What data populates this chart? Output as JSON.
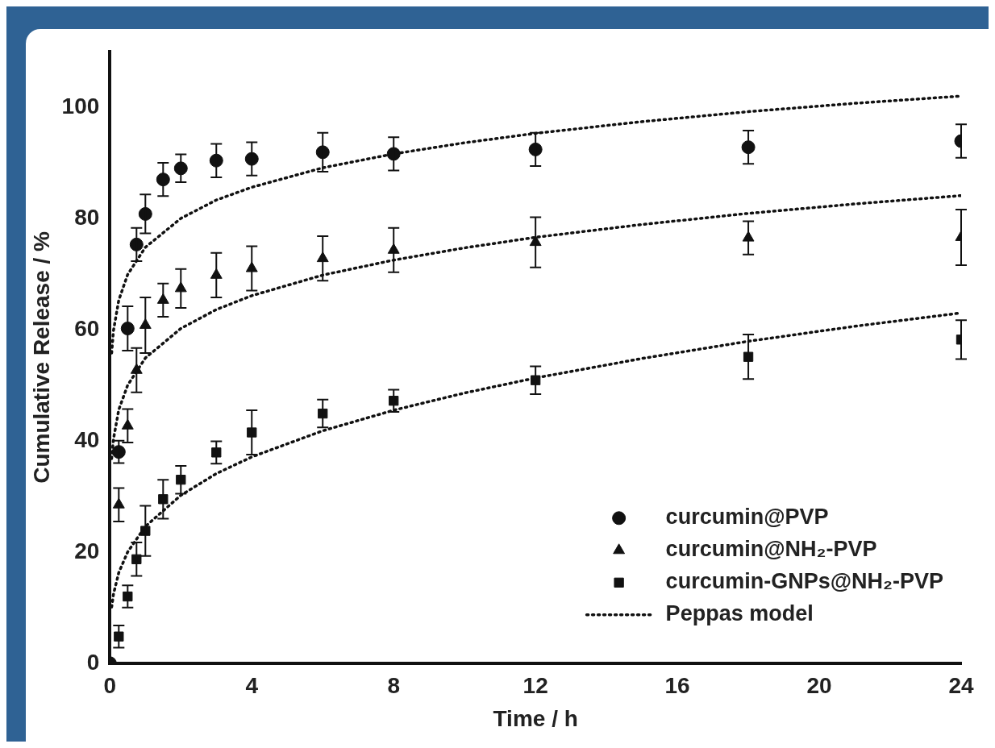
{
  "chart_data": {
    "type": "scatter",
    "xlabel": "Time / h",
    "ylabel": "Cumulative Release / %",
    "xlim": [
      0,
      24
    ],
    "xticks": [
      0,
      4,
      8,
      12,
      16,
      20,
      24
    ],
    "ylim": [
      0,
      110
    ],
    "yticks": [
      0,
      20,
      40,
      60,
      80,
      100
    ],
    "grid": false,
    "legend": "bottom right",
    "series": [
      {
        "name": "curcumin@PVP",
        "marker": "circle",
        "color": "#111111",
        "x": [
          0,
          0.25,
          0.5,
          0.75,
          1,
          1.5,
          2,
          3,
          4,
          6,
          8,
          12,
          18,
          24
        ],
        "values": [
          0,
          38,
          60.2,
          75.3,
          80.8,
          87,
          89,
          90.4,
          90.7,
          91.9,
          91.6,
          92.4,
          92.8,
          93.9
        ],
        "errors": [
          null,
          2,
          4,
          3,
          3.5,
          3,
          2.5,
          3,
          3,
          3.5,
          3,
          3,
          3,
          3
        ]
      },
      {
        "name": "curcumin@NH₂-PVP",
        "marker": "triangle",
        "color": "#111111",
        "x": [
          0.25,
          0.5,
          0.75,
          1,
          1.5,
          2,
          3,
          4,
          6,
          8,
          12,
          18,
          24
        ],
        "values": [
          28.5,
          42.7,
          52.7,
          60.8,
          65.3,
          67.4,
          69.8,
          71,
          72.8,
          74.3,
          75.7,
          76.5,
          76.6
        ],
        "errors": [
          3,
          3,
          4,
          5,
          3,
          3.5,
          4,
          4,
          4,
          4,
          4.5,
          3,
          5
        ]
      },
      {
        "name": "curcumin-GNPs@NH₂-PVP",
        "marker": "square",
        "color": "#111111",
        "x": [
          0.25,
          0.5,
          0.75,
          1,
          1.5,
          2,
          3,
          4,
          6,
          8,
          12,
          18,
          24
        ],
        "values": [
          4.8,
          12,
          18.7,
          23.8,
          29.5,
          33,
          37.9,
          41.5,
          44.9,
          47.2,
          50.9,
          55.1,
          58.2
        ],
        "errors": [
          2,
          2,
          3,
          4.5,
          3.5,
          2.5,
          2,
          4,
          2.5,
          2,
          2.5,
          4,
          3.5
        ]
      },
      {
        "name": "Peppas model",
        "type": "line",
        "line_style": "dotted",
        "marker": "none",
        "color": "#111111",
        "x": [
          0.05,
          0.1,
          0.25,
          0.5,
          1,
          2,
          3,
          4,
          6,
          8,
          10,
          12,
          15,
          18,
          21,
          24
        ],
        "values": [
          55.8,
          59.8,
          65.3,
          69.9,
          74.8,
          80,
          83.3,
          85.6,
          89.1,
          91.6,
          93.6,
          95.3,
          97.4,
          99.2,
          100.7,
          102
        ]
      },
      {
        "type": "line",
        "line_style": "dotted",
        "marker": "none",
        "color": "#111111",
        "x": [
          0.05,
          0.1,
          0.25,
          0.5,
          1,
          2,
          3,
          4,
          6,
          8,
          10,
          12,
          15,
          18,
          21,
          24
        ],
        "values": [
          36.8,
          40.3,
          45.6,
          50,
          54.9,
          60.2,
          63.6,
          66.1,
          69.8,
          72.5,
          74.7,
          76.6,
          78.9,
          80.9,
          82.6,
          84.1
        ]
      },
      {
        "type": "line",
        "line_style": "dotted",
        "marker": "none",
        "color": "#111111",
        "x": [
          0.05,
          0.1,
          0.25,
          0.5,
          1,
          2,
          3,
          4,
          6,
          8,
          10,
          12,
          15,
          18,
          21,
          24
        ],
        "values": [
          10.1,
          12.4,
          16.3,
          20,
          24.6,
          30.2,
          34.1,
          37.1,
          41.8,
          45.5,
          48.6,
          51.3,
          54.8,
          57.9,
          60.6,
          63
        ]
      }
    ]
  }
}
